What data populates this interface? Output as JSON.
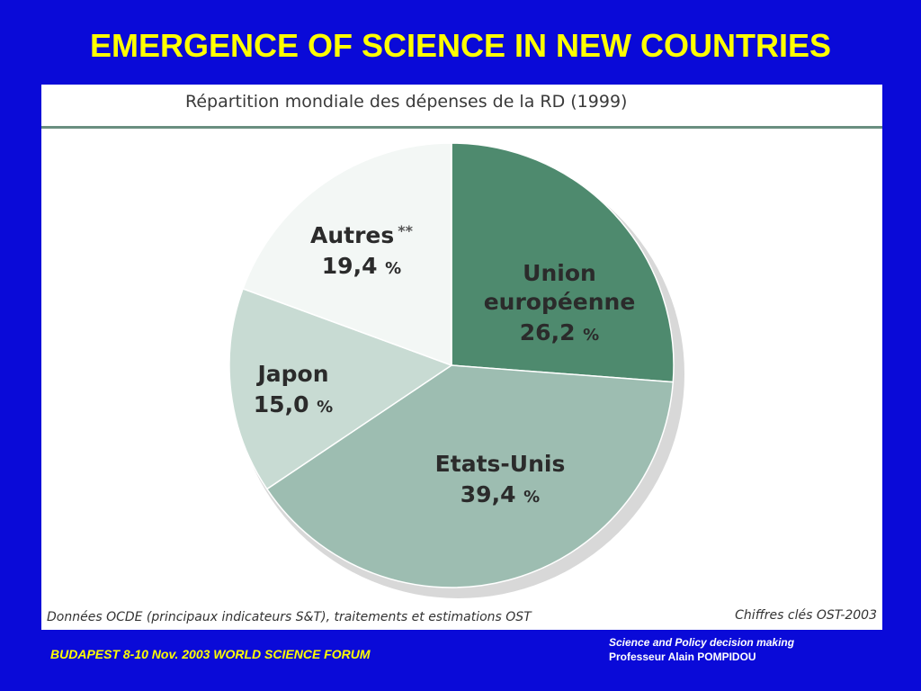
{
  "slide": {
    "title": "EMERGENCE OF SCIENCE IN NEW COUNTRIES",
    "footer_left": "BUDAPEST 8-10 Nov. 2003  WORLD SCIENCE FORUM",
    "footer_right_line1": "Science and Policy decision making",
    "footer_right_line2": "Professeur Alain POMPIDOU"
  },
  "chart_data": {
    "type": "pie",
    "title": "Répartition mondiale des dépenses de la RD (1999)",
    "source_left": "Données OCDE (principaux indicateurs S&T), traitements et estimations OST",
    "source_right": "Chiffres clés OST-2003",
    "slices": [
      {
        "label": "Union européenne",
        "value_text": "26,2",
        "value": 26.2,
        "color": "#4e8a6e"
      },
      {
        "label": "Etats-Unis",
        "value_text": "39,4",
        "value": 39.4,
        "color": "#9dbdb1"
      },
      {
        "label": "Japon",
        "value_text": "15,0",
        "value": 15.0,
        "color": "#c8dbd3"
      },
      {
        "label": "Autres",
        "value_text": "19,4",
        "value": 19.4,
        "color": "#f3f7f5",
        "marker": "**"
      }
    ],
    "unit": "%",
    "start": "12 o'clock, clockwise"
  }
}
